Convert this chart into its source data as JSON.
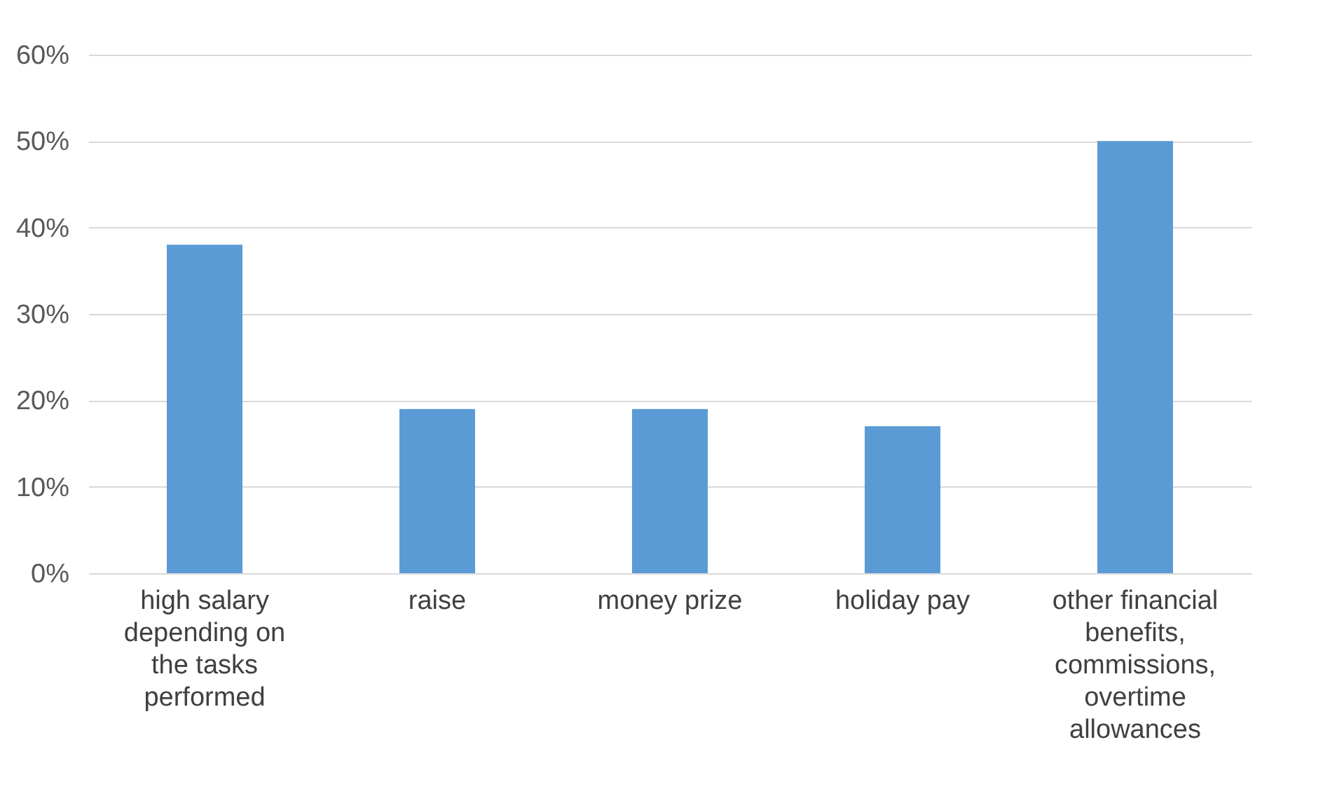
{
  "chart_data": {
    "type": "bar",
    "categories": [
      "high salary depending on the tasks performed",
      "raise",
      "money prize",
      "holiday pay",
      "other financial benefits, commissions, overtime allowances"
    ],
    "values": [
      38,
      19,
      19,
      17,
      50
    ],
    "color": "#5b9bd5",
    "ylim": [
      0,
      60
    ],
    "yticks": [
      {
        "value": 0,
        "label": "0%"
      },
      {
        "value": 10,
        "label": "10%"
      },
      {
        "value": 20,
        "label": "20%"
      },
      {
        "value": 30,
        "label": "30%"
      },
      {
        "value": 40,
        "label": "40%"
      },
      {
        "value": 50,
        "label": "50%"
      },
      {
        "value": 60,
        "label": "60%"
      }
    ],
    "grid": "y"
  }
}
